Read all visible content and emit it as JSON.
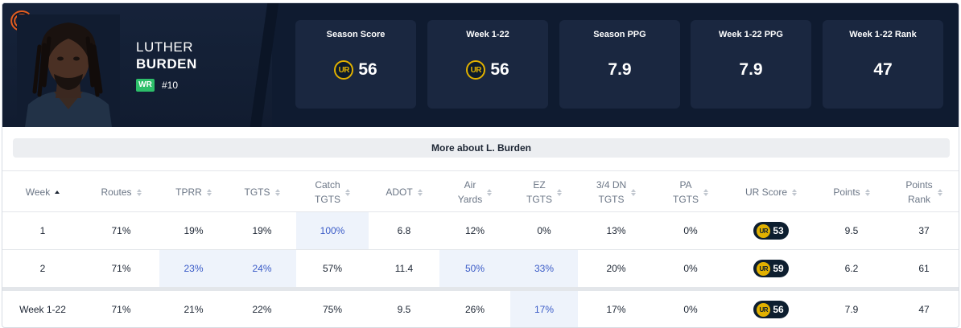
{
  "player": {
    "first_name": "LUTHER",
    "last_name": "BURDEN",
    "position": "WR",
    "jersey": "#10",
    "team_logo": "C",
    "colors": {
      "header_bg": "#0f1b30",
      "card_bg": "#1a2740",
      "position_badge": "#2dbf6a",
      "ur_gold": "#e1b100",
      "highlight_bg": "#eef3fb",
      "highlight_text": "#3a5bc7"
    }
  },
  "stat_cards": [
    {
      "title": "Season Score",
      "value": "56",
      "ur_icon": true
    },
    {
      "title": "Week 1-22",
      "value": "56",
      "ur_icon": true
    },
    {
      "title": "Season PPG",
      "value": "7.9",
      "ur_icon": false
    },
    {
      "title": "Week 1-22 PPG",
      "value": "7.9",
      "ur_icon": false
    },
    {
      "title": "Week 1-22 Rank",
      "value": "47",
      "ur_icon": false
    }
  ],
  "ur_icon_label": "UR",
  "more_button": "More about L. Burden",
  "table": {
    "columns": [
      {
        "line1": "Week",
        "line2": ""
      },
      {
        "line1": "Routes",
        "line2": ""
      },
      {
        "line1": "TPRR",
        "line2": ""
      },
      {
        "line1": "TGTS",
        "line2": ""
      },
      {
        "line1": "Catch",
        "line2": "TGTS"
      },
      {
        "line1": "ADOT",
        "line2": ""
      },
      {
        "line1": "Air",
        "line2": "Yards"
      },
      {
        "line1": "EZ",
        "line2": "TGTS"
      },
      {
        "line1": "3/4 DN",
        "line2": "TGTS"
      },
      {
        "line1": "PA",
        "line2": "TGTS"
      },
      {
        "line1": "UR Score",
        "line2": ""
      },
      {
        "line1": "Points",
        "line2": ""
      },
      {
        "line1": "Points",
        "line2": "Rank"
      }
    ],
    "rows": [
      {
        "week": "1",
        "routes": "71%",
        "tprr": "19%",
        "tgts": "19%",
        "catch_tgts": "100%",
        "adot": "6.8",
        "air_yards": "12%",
        "ez_tgts": "0%",
        "dn34_tgts": "13%",
        "pa_tgts": "0%",
        "ur_score": "53",
        "points": "9.5",
        "points_rank": "37"
      },
      {
        "week": "2",
        "routes": "71%",
        "tprr": "23%",
        "tgts": "24%",
        "catch_tgts": "57%",
        "adot": "11.4",
        "air_yards": "50%",
        "ez_tgts": "33%",
        "dn34_tgts": "20%",
        "pa_tgts": "0%",
        "ur_score": "59",
        "points": "6.2",
        "points_rank": "61"
      }
    ],
    "total": {
      "week": "Week 1-22",
      "routes": "71%",
      "tprr": "21%",
      "tgts": "22%",
      "catch_tgts": "75%",
      "adot": "9.5",
      "air_yards": "26%",
      "ez_tgts": "17%",
      "dn34_tgts": "17%",
      "pa_tgts": "0%",
      "ur_score": "56",
      "points": "7.9",
      "points_rank": "47"
    }
  }
}
